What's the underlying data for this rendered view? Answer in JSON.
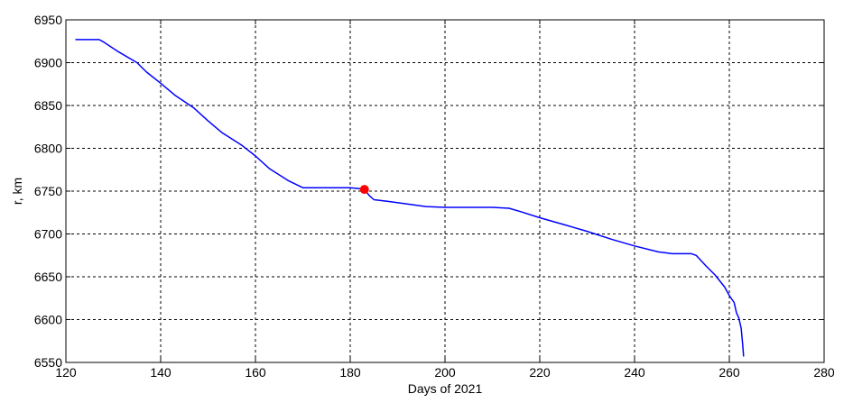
{
  "chart_data": {
    "type": "line",
    "title": "",
    "xlabel": "Days of 2021",
    "ylabel": "r, km",
    "xlim": [
      120,
      280
    ],
    "ylim": [
      6550,
      6950
    ],
    "xticks": [
      120,
      140,
      160,
      180,
      200,
      220,
      240,
      260,
      280
    ],
    "yticks": [
      6550,
      6600,
      6650,
      6700,
      6750,
      6800,
      6850,
      6900,
      6950
    ],
    "grid": true,
    "legend": "none",
    "series": [
      {
        "color": "#0000ff",
        "x": [
          122,
          127,
          128,
          131,
          135,
          137,
          140,
          143,
          147,
          150,
          153,
          157,
          160,
          163,
          167,
          170,
          173,
          174.5,
          176,
          178,
          180,
          182,
          183,
          184,
          185,
          188,
          192,
          196,
          200,
          205,
          210,
          213.5,
          216,
          220,
          225,
          230,
          235,
          240,
          245,
          248,
          250,
          252,
          253,
          255,
          257,
          259,
          260,
          261,
          261.5,
          262,
          262.5,
          262.8,
          263
        ],
        "y": [
          6927,
          6927,
          6924,
          6913,
          6900,
          6889,
          6876,
          6862,
          6847,
          6832,
          6818,
          6804,
          6791,
          6776,
          6762,
          6754,
          6754,
          6754,
          6754,
          6754,
          6754,
          6753,
          6752,
          6745,
          6740,
          6738,
          6735,
          6732,
          6731,
          6731,
          6731,
          6730,
          6726,
          6719,
          6711,
          6703,
          6694,
          6686,
          6679,
          6677,
          6677,
          6677,
          6675,
          6663,
          6652,
          6638,
          6628,
          6620,
          6608,
          6602,
          6590,
          6572,
          6557
        ]
      }
    ],
    "marker": {
      "x": 183,
      "y": 6752,
      "color": "#ff0000"
    }
  }
}
